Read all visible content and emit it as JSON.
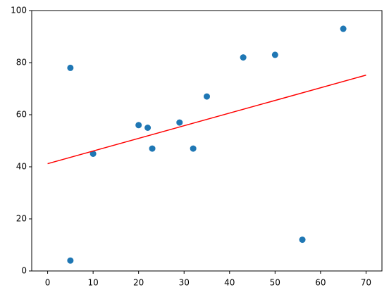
{
  "chart_data": {
    "type": "scatter",
    "x": [
      5,
      5,
      10,
      20,
      22,
      23,
      29,
      32,
      35,
      43,
      50,
      56,
      65
    ],
    "values": [
      78,
      4,
      45,
      56,
      55,
      47,
      57,
      47,
      67,
      82,
      83,
      12,
      93
    ],
    "color": "#1f77b4",
    "fit": {
      "x": [
        0,
        70
      ],
      "values": [
        41.2,
        75.2
      ],
      "color": "#ff0000"
    },
    "xlim": [
      -3.5,
      73.5
    ],
    "xticks": [
      0,
      10,
      20,
      30,
      40,
      50,
      60,
      70
    ],
    "ylim": [
      0,
      100
    ],
    "yticks": [
      0,
      20,
      40,
      60,
      80,
      100
    ]
  }
}
